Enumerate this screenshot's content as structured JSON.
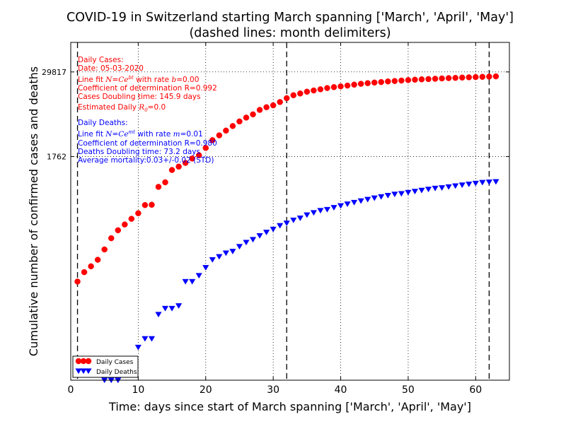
{
  "chart_data": {
    "type": "scatter",
    "title": [
      "COVID-19 in Switzerland starting March spanning ['March', 'April', 'May']",
      "(dashed lines: month delimiters)"
    ],
    "xlabel": "Time: days since start of March spanning ['March', 'April', 'May']",
    "ylabel": "Cumulative number of confirmed cases and deaths",
    "x_ticks": [
      0,
      10,
      20,
      30,
      40,
      50,
      60
    ],
    "xlim": [
      0,
      65
    ],
    "y_scale": "log",
    "ylim": [
      1,
      80000
    ],
    "y_ticks": [
      1762,
      29817
    ],
    "month_delimiters": [
      1,
      32,
      62
    ],
    "grid": "dotted",
    "legend_position": "bottom-left",
    "series": [
      {
        "name": "Daily Cases",
        "marker": "circle",
        "color": "#ff0000",
        "x": [
          1,
          2,
          3,
          4,
          5,
          6,
          7,
          8,
          9,
          10,
          11,
          12,
          13,
          14,
          15,
          16,
          17,
          18,
          19,
          20,
          21,
          22,
          23,
          24,
          25,
          26,
          27,
          28,
          29,
          30,
          31,
          32,
          33,
          34,
          35,
          36,
          37,
          38,
          39,
          40,
          41,
          42,
          43,
          44,
          45,
          46,
          47,
          48,
          49,
          50,
          51,
          52,
          53,
          54,
          55,
          56,
          57,
          58,
          59,
          60,
          61,
          62,
          63
        ],
        "y": [
          27,
          37,
          45,
          56,
          79,
          115,
          150,
          182,
          220,
          265,
          348,
          352,
          640,
          745,
          1125,
          1260,
          1425,
          1650,
          1840,
          2350,
          3050,
          3580,
          4200,
          4890,
          5700,
          6480,
          7220,
          8380,
          9170,
          9760,
          10900,
          12400,
          13690,
          14500,
          15400,
          16050,
          16700,
          17400,
          17940,
          18400,
          18900,
          19500,
          20050,
          20480,
          20900,
          21250,
          21700,
          22000,
          22350,
          22700,
          23000,
          23280,
          23500,
          23740,
          24000,
          24250,
          24450,
          24700,
          24900,
          25100,
          25300,
          25500,
          25700
        ]
      },
      {
        "name": "Daily Deaths",
        "marker": "triangle-down",
        "color": "#0000ff",
        "x": [
          5,
          6,
          7,
          8,
          9,
          10,
          11,
          12,
          13,
          14,
          15,
          16,
          17,
          18,
          19,
          20,
          21,
          22,
          23,
          24,
          25,
          26,
          27,
          28,
          29,
          30,
          31,
          32,
          33,
          34,
          35,
          36,
          37,
          38,
          39,
          40,
          41,
          42,
          43,
          44,
          45,
          46,
          47,
          48,
          49,
          50,
          51,
          52,
          53,
          54,
          55,
          56,
          57,
          58,
          59,
          60,
          61,
          62,
          63
        ],
        "y": [
          1,
          1,
          1,
          2,
          2,
          3,
          4,
          4,
          9,
          11,
          11,
          12,
          27,
          27,
          33,
          43,
          56,
          62,
          70,
          74,
          87,
          100,
          110,
          125,
          140,
          155,
          175,
          190,
          210,
          225,
          250,
          270,
          290,
          300,
          320,
          340,
          360,
          380,
          400,
          420,
          440,
          460,
          480,
          500,
          510,
          530,
          550,
          570,
          590,
          610,
          620,
          640,
          660,
          680,
          700,
          720,
          740,
          750,
          760
        ]
      }
    ],
    "annotations": {
      "cases": {
        "color": "#ff0000",
        "lines": [
          "Daily Cases:",
          "Date: 05-03-2020",
          "Line fit N=Ce^{bt} with rate b=0.00",
          "Coefficient of determination R=0.992",
          "Cases Doubling time: 145.9 days",
          "Estimated Daily R_0 =0.0"
        ],
        "heading": "Daily Cases:",
        "date": "Date: 05-03-2020",
        "fit_pre": "Line fit ",
        "fit_mid": " with rate ",
        "fit_post": "=0.00",
        "fit_var": "b",
        "fit_exp": "bt",
        "coef": "Coefficient of determination R=0.992",
        "doubling": "Cases Doubling time: 145.9 days",
        "r0_pre": "Estimated Daily ",
        "r0_post": "=0.0"
      },
      "deaths": {
        "color": "#0000ff",
        "lines": [
          "Daily Deaths:",
          "Line fit N=Ce^{mt} with rate m=0.01",
          "Coefficient of determination R=0.980",
          "Deaths Doubling time: 73.2 days",
          "Average mortality:0.03+/-0.02 (STD)"
        ],
        "heading": "Daily Deaths:",
        "fit_pre": "Line fit ",
        "fit_mid": " with rate ",
        "fit_post": "=0.01",
        "fit_var": "m",
        "fit_exp": "mt",
        "coef": "Coefficient of determination R=0.980",
        "doubling": "Deaths Doubling time: 73.2 days",
        "mortality": "Average mortality:0.03+/-0.02 (STD)"
      }
    }
  }
}
